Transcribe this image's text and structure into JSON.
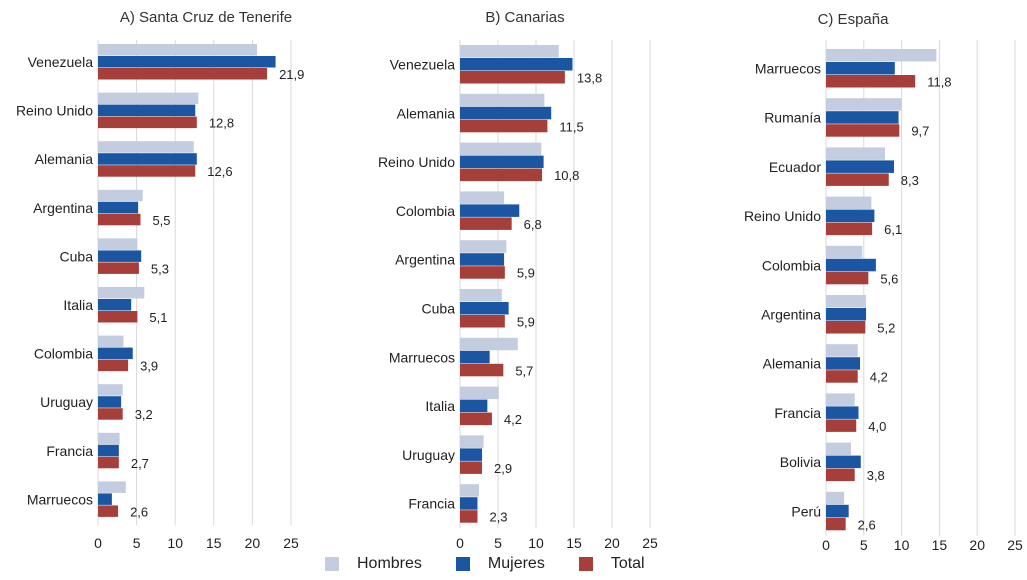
{
  "chart_data": [
    {
      "type": "bar",
      "orientation": "horizontal",
      "title": "A) Santa Cruz de Tenerife",
      "categories": [
        "Venezuela",
        "Reino Unido",
        "Alemania",
        "Argentina",
        "Cuba",
        "Italia",
        "Colombia",
        "Uruguay",
        "Francia",
        "Marruecos"
      ],
      "series": [
        {
          "name": "Hombres",
          "values": [
            20.6,
            13.0,
            12.4,
            5.8,
            5.1,
            6.0,
            3.3,
            3.2,
            2.8,
            3.6
          ]
        },
        {
          "name": "Mujeres",
          "values": [
            23.0,
            12.6,
            12.8,
            5.2,
            5.6,
            4.3,
            4.5,
            3.0,
            2.7,
            1.8
          ]
        },
        {
          "name": "Total",
          "values": [
            21.9,
            12.8,
            12.6,
            5.5,
            5.3,
            5.1,
            3.9,
            3.2,
            2.7,
            2.6
          ]
        }
      ],
      "data_labels": [
        "21,9",
        "12,8",
        "12,6",
        "5,5",
        "5,3",
        "5,1",
        "3,9",
        "3,2",
        "2,7",
        "2,6"
      ],
      "xlim": [
        0,
        25
      ],
      "xticks": [
        "0",
        "5",
        "10",
        "15",
        "20",
        "25"
      ],
      "grid": true
    },
    {
      "type": "bar",
      "orientation": "horizontal",
      "title": "B) Canarias",
      "categories": [
        "Venezuela",
        "Alemania",
        "Reino Unido",
        "Colombia",
        "Argentina",
        "Cuba",
        "Marruecos",
        "Italia",
        "Uruguay",
        "Francia"
      ],
      "series": [
        {
          "name": "Hombres",
          "values": [
            13.0,
            11.1,
            10.7,
            5.8,
            6.1,
            5.5,
            7.6,
            5.1,
            3.1,
            2.5
          ]
        },
        {
          "name": "Mujeres",
          "values": [
            14.8,
            12.0,
            11.0,
            7.8,
            5.8,
            6.4,
            3.9,
            3.6,
            2.9,
            2.3
          ]
        },
        {
          "name": "Total",
          "values": [
            13.8,
            11.5,
            10.8,
            6.8,
            5.9,
            5.9,
            5.7,
            4.2,
            2.9,
            2.3
          ]
        }
      ],
      "data_labels": [
        "13,8",
        "11,5",
        "10,8",
        "6,8",
        "5,9",
        "5,9",
        "5,7",
        "4,2",
        "2,9",
        "2,3"
      ],
      "xlim": [
        0,
        25
      ],
      "xticks": [
        "0",
        "5",
        "10",
        "15",
        "20",
        "25"
      ],
      "grid": true
    },
    {
      "type": "bar",
      "orientation": "horizontal",
      "title": "C) España",
      "categories": [
        "Marruecos",
        "Rumanía",
        "Ecuador",
        "Reino Unido",
        "Colombia",
        "Argentina",
        "Alemania",
        "Francia",
        "Bolivia",
        "Perú"
      ],
      "series": [
        {
          "name": "Hombres",
          "values": [
            14.6,
            10.0,
            7.8,
            6.0,
            4.8,
            5.3,
            4.2,
            3.8,
            3.3,
            2.4
          ]
        },
        {
          "name": "Mujeres",
          "values": [
            9.1,
            9.6,
            9.0,
            6.4,
            6.6,
            5.3,
            4.5,
            4.3,
            4.6,
            3.0
          ]
        },
        {
          "name": "Total",
          "values": [
            11.8,
            9.7,
            8.3,
            6.1,
            5.6,
            5.2,
            4.2,
            4.0,
            3.8,
            2.6
          ]
        }
      ],
      "data_labels": [
        "11,8",
        "9,7",
        "8,3",
        "6,1",
        "5,6",
        "5,2",
        "4,2",
        "4,0",
        "3,8",
        "2,6"
      ],
      "xlim": [
        0,
        25
      ],
      "xticks": [
        "0",
        "5",
        "10",
        "15",
        "20",
        "25"
      ],
      "grid": true
    }
  ],
  "legend": {
    "position": "bottom-center",
    "items": [
      {
        "label": "Hombres",
        "color": "#c4cce0"
      },
      {
        "label": "Mujeres",
        "color": "#1b56a3"
      },
      {
        "label": "Total",
        "color": "#a63f3a"
      }
    ]
  },
  "colors": {
    "hombres": "#c4cce0",
    "mujeres": "#1b56a3",
    "total": "#a63f3a",
    "grid": "#d9d9d9"
  }
}
